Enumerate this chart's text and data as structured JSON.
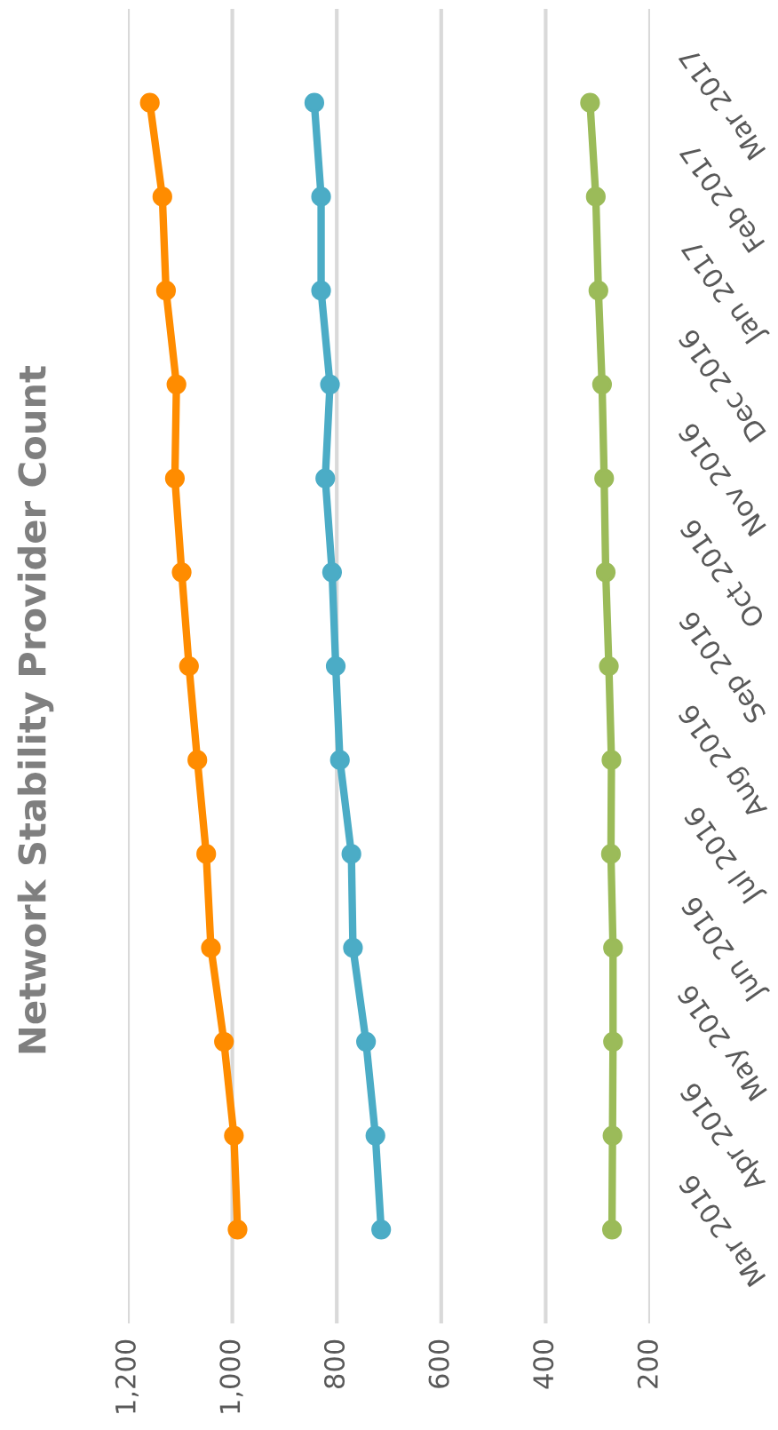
{
  "chart_data": {
    "type": "line",
    "title": "Network Stability Provider Count",
    "categories": [
      "Mar 2017",
      "Feb 2017",
      "Jan 2017",
      "Dec 2016",
      "Nov 2016",
      "Oct 2016",
      "Sep 2016",
      "Aug 2016",
      "Jul 2016",
      "Jun 2016",
      "May 2016",
      "Apr 2016",
      "Mar 2016"
    ],
    "series": [
      {
        "color": "#ff8c00",
        "values": [
          1158,
          1134,
          1127,
          1107,
          1110,
          1097,
          1083,
          1067,
          1050,
          1041,
          1016,
          997,
          990
        ]
      },
      {
        "color": "#4bacc6",
        "values": [
          843,
          830,
          830,
          813,
          822,
          809,
          802,
          794,
          772,
          769,
          744,
          726,
          715
        ]
      },
      {
        "color": "#9bbb59",
        "values": [
          315,
          304,
          299,
          292,
          288,
          285,
          279,
          274,
          275,
          271,
          271,
          272,
          273
        ]
      }
    ],
    "orientation": "horizontal",
    "xlim": [
      1200,
      200
    ],
    "xticks": [
      {
        "value": 1200,
        "label": "1,200"
      },
      {
        "value": 1000,
        "label": "1,000"
      },
      800,
      600,
      400,
      200
    ],
    "grid": "x",
    "marker": "circle",
    "legend": false
  }
}
